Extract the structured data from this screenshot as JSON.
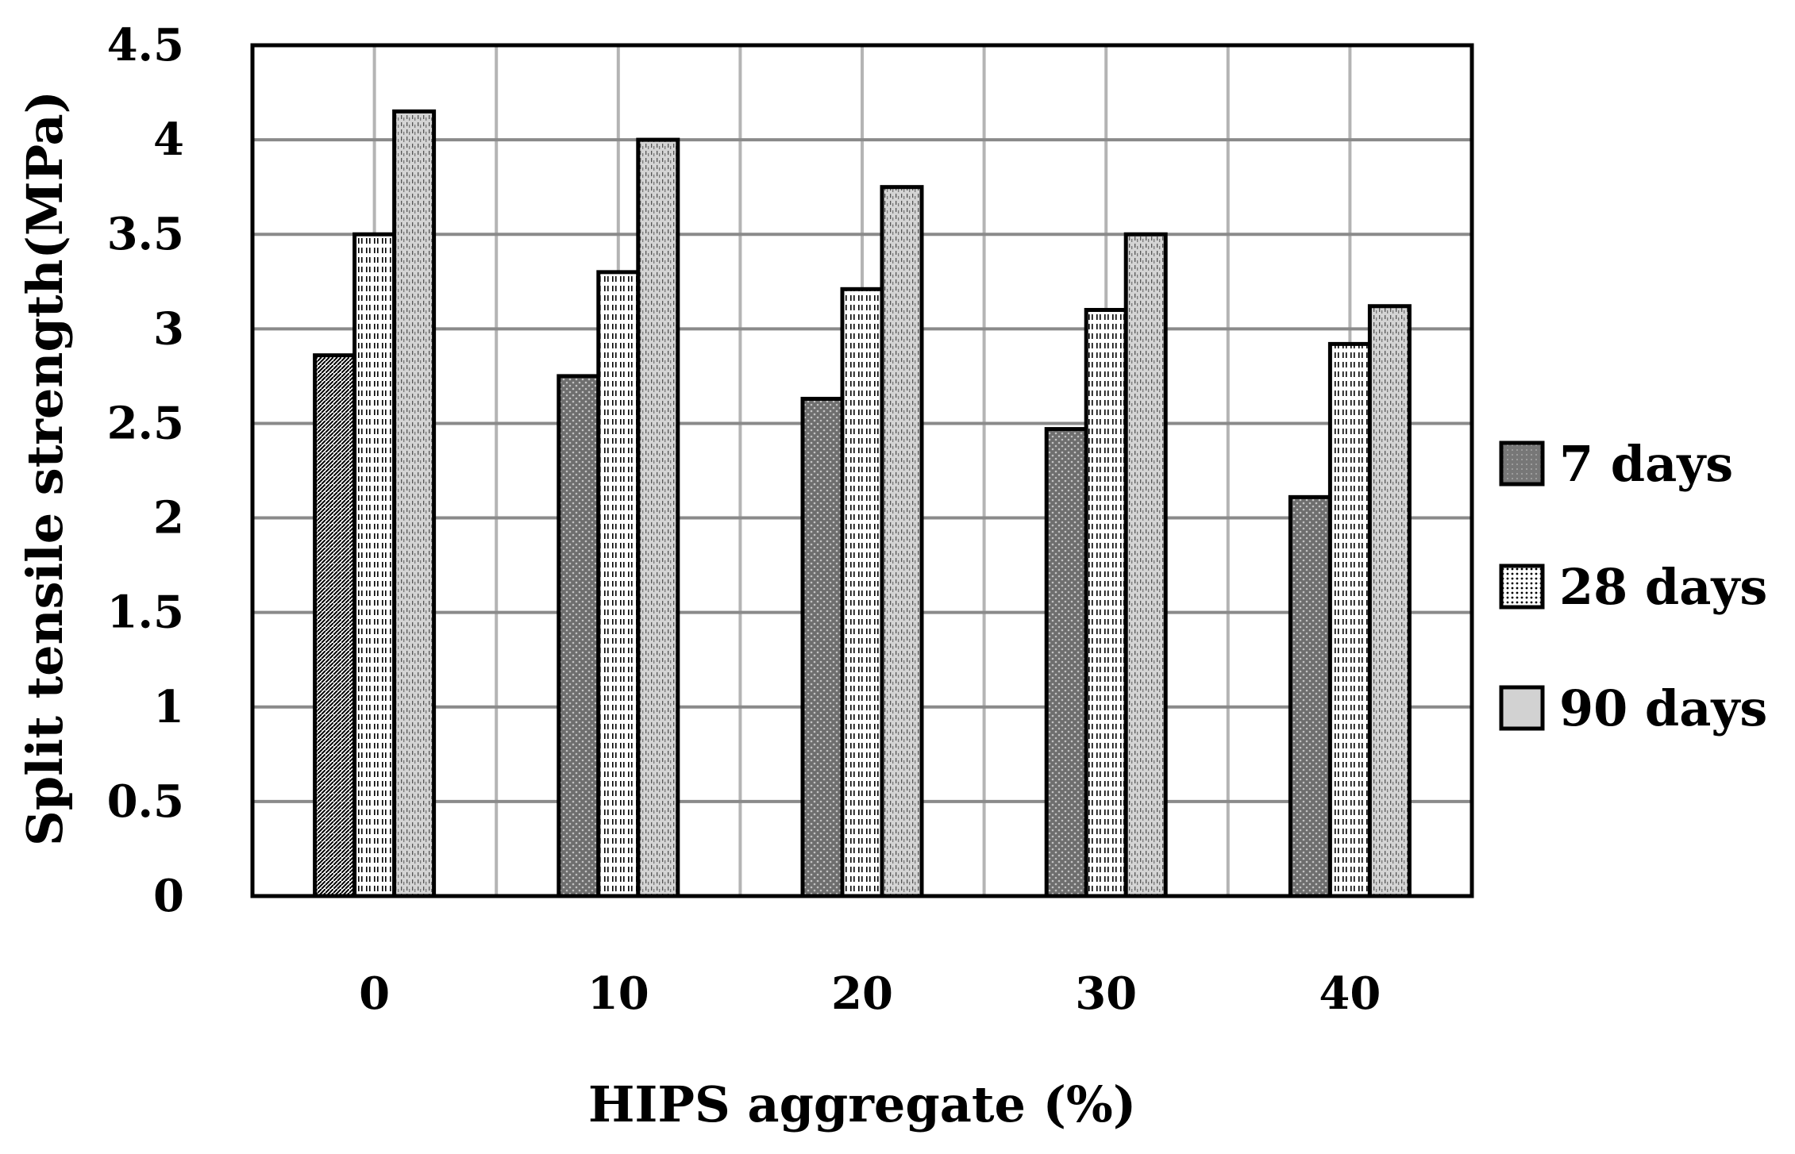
{
  "chart_data": {
    "type": "bar",
    "title": "",
    "xlabel": "HIPS aggregate (%)",
    "ylabel": "Split tensile strength(MPa)",
    "categories": [
      "0",
      "10",
      "20",
      "30",
      "40"
    ],
    "ylim": [
      0,
      4.5
    ],
    "yticks": [
      "0",
      "0.5",
      "1",
      "1.5",
      "2",
      "2.5",
      "3",
      "3.5",
      "4",
      "4.5"
    ],
    "grid": "on",
    "legend_position": "right",
    "series": [
      {
        "name": "7 days",
        "values": [
          2.86,
          2.75,
          2.63,
          2.47,
          2.11
        ],
        "color": "#7a7a7a"
      },
      {
        "name": "28 days",
        "values": [
          3.5,
          3.3,
          3.21,
          3.1,
          2.92
        ],
        "color": "#f2f2f2"
      },
      {
        "name": "90 days",
        "values": [
          4.15,
          4.0,
          3.75,
          3.5,
          3.12
        ],
        "color": "#c8c8c8"
      }
    ]
  }
}
